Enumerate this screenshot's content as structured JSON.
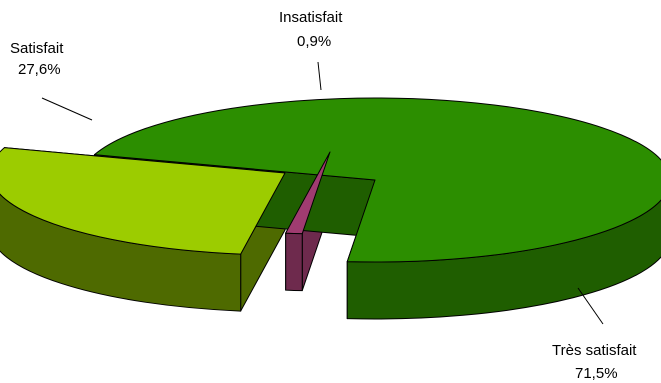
{
  "chart_data": {
    "type": "pie",
    "style": "3d-exploded",
    "title": "",
    "slices": [
      {
        "category": "Très satisfait",
        "value": 71.5,
        "value_label": "71,5%",
        "color": "#2c8e00",
        "side_color": "#1f5e00"
      },
      {
        "category": "Insatisfait",
        "value": 0.9,
        "value_label": "0,9%",
        "color": "#a03c70",
        "side_color": "#6e2a4d"
      },
      {
        "category": "Satisfait",
        "value": 27.6,
        "value_label": "27,6%",
        "color": "#9ccc00",
        "side_color": "#4e6a00"
      }
    ],
    "legend": "none"
  }
}
